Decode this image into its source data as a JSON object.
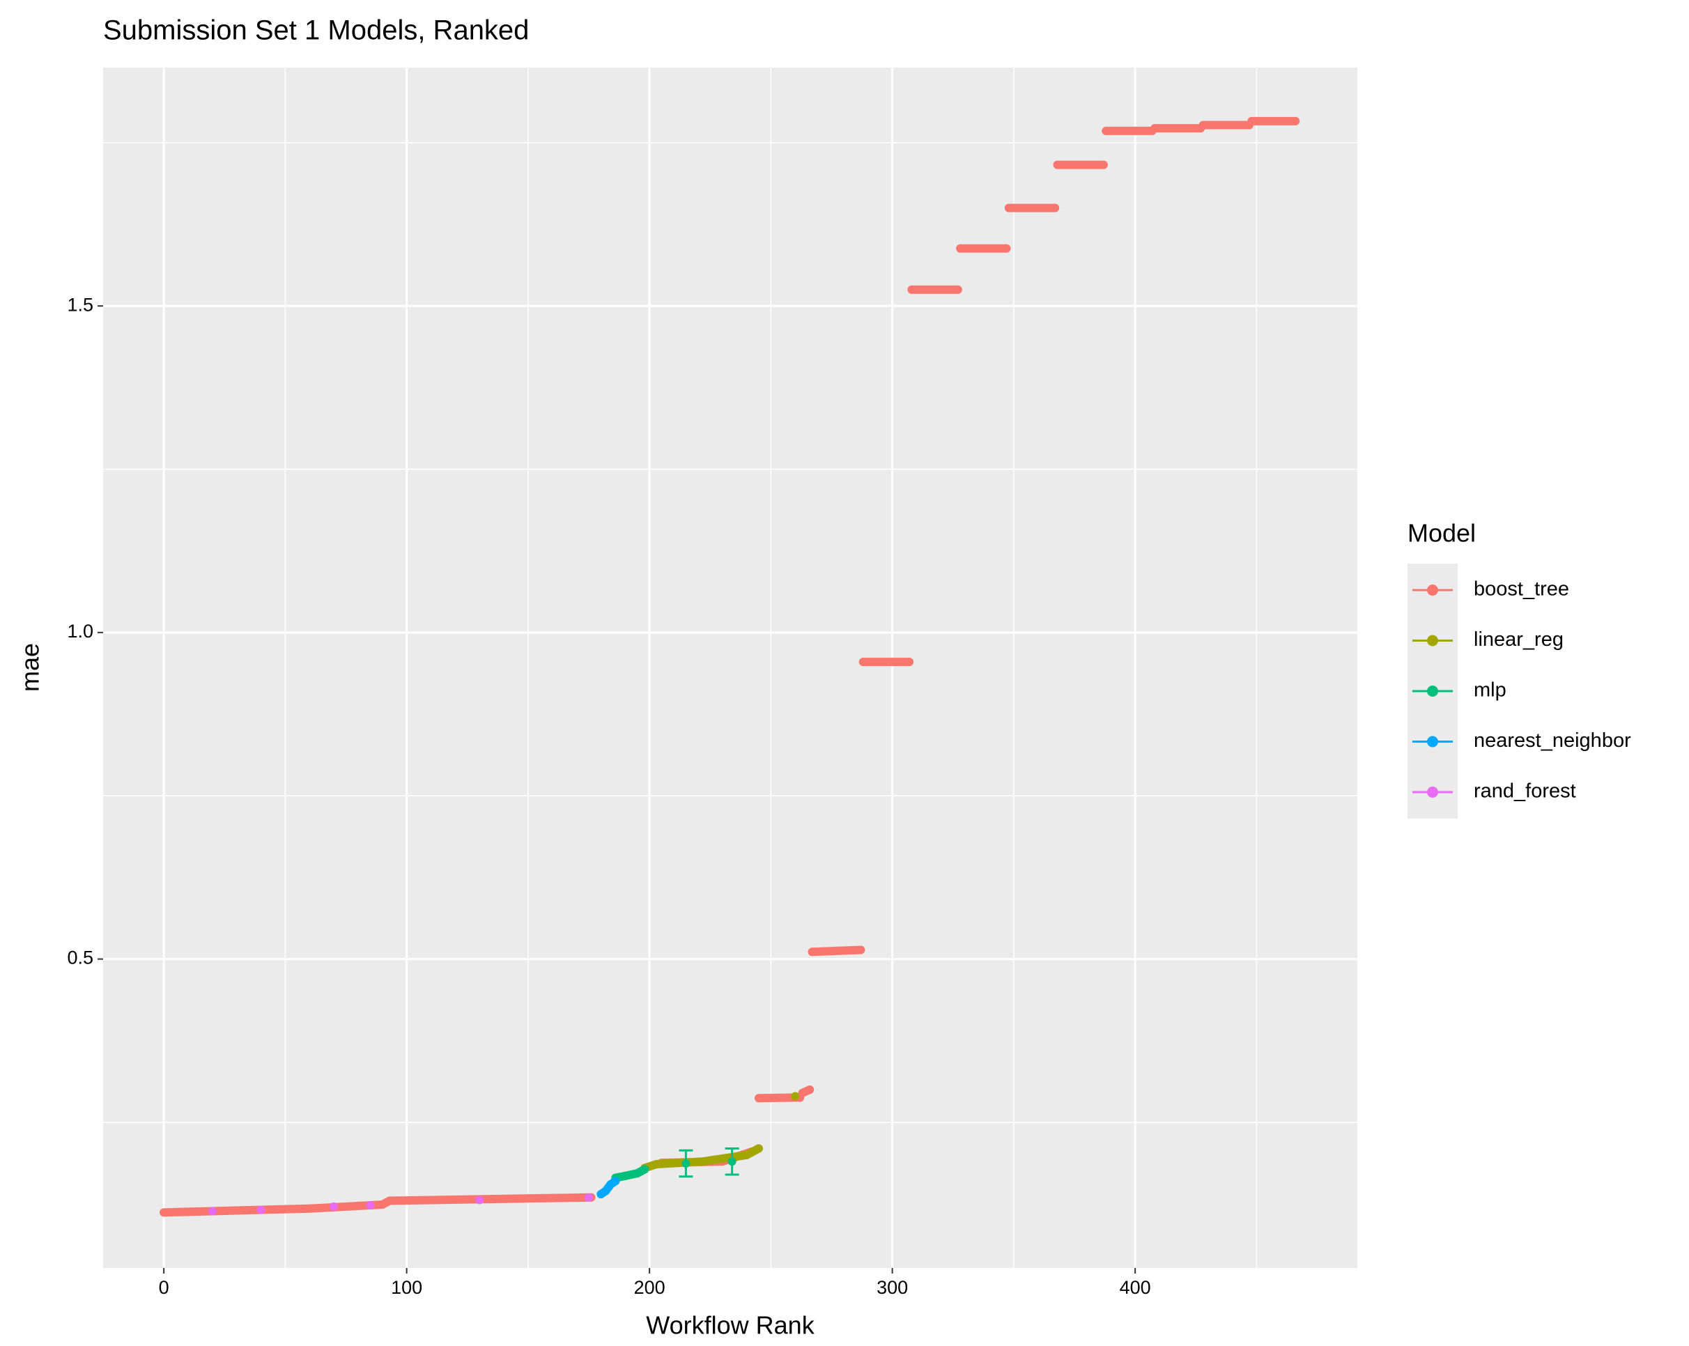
{
  "chart_data": {
    "type": "line",
    "title": "Submission Set 1 Models, Ranked",
    "x_label": "Workflow Rank",
    "y_label": "mae",
    "legend_title": "Model",
    "legend": "right",
    "grid": true,
    "xlim": [
      -25,
      491.5
    ],
    "ylim": [
      0.027,
      1.865
    ],
    "xticks": [
      0,
      100,
      200,
      300,
      400
    ],
    "yticks": [
      {
        "value": 0.5,
        "label": "0.5"
      },
      {
        "value": 1.0,
        "label": "1.0"
      },
      {
        "value": 1.5,
        "label": "1.5"
      }
    ],
    "xminor": [
      50,
      150,
      250,
      350,
      450
    ],
    "yminor": [
      0.25,
      0.75,
      1.25,
      1.75
    ],
    "series": [
      {
        "name": "boost_tree",
        "color": "#F8766D",
        "x": [
          0,
          60,
          90,
          93,
          176,
          177,
          205,
          230,
          242,
          244,
          245,
          262,
          262.5,
          263,
          266,
          266.5,
          267,
          287,
          287.5,
          288,
          307,
          307.5,
          308,
          327,
          327.5,
          328,
          347,
          347.5,
          348,
          367,
          367.5,
          368,
          387,
          387.5,
          388,
          407,
          407.5,
          408,
          427,
          427.5,
          428,
          447,
          447.5,
          448,
          466
        ],
        "values": [
          0.112,
          0.118,
          0.124,
          0.13,
          0.135,
          null,
          0.188,
          0.19,
          0.205,
          null,
          0.287,
          0.288,
          null,
          0.295,
          0.3,
          null,
          0.511,
          0.514,
          null,
          0.955,
          0.955,
          null,
          1.525,
          1.525,
          null,
          1.588,
          1.588,
          null,
          1.65,
          1.65,
          null,
          1.716,
          1.716,
          null,
          1.768,
          1.768,
          null,
          1.772,
          1.772,
          null,
          1.777,
          1.777,
          null,
          1.783,
          1.783
        ]
      },
      {
        "name": "linear_reg",
        "color": "#A3A500",
        "x": [
          198,
          203,
          212,
          222,
          240,
          245,
          252,
          260
        ],
        "values": [
          0.18,
          0.186,
          0.188,
          0.19,
          0.2,
          0.21,
          null,
          0.29
        ]
      },
      {
        "name": "mlp",
        "color": "#00BF7D",
        "x": [
          186,
          190,
          195,
          198,
          206,
          215,
          225,
          234
        ],
        "values": [
          0.165,
          0.168,
          0.172,
          0.178,
          null,
          0.187,
          null,
          0.19
        ],
        "errors": [
          null,
          null,
          null,
          null,
          null,
          0.02,
          null,
          0.02
        ]
      },
      {
        "name": "nearest_neighbor",
        "color": "#00A9FF",
        "x": [
          180,
          182,
          184,
          186
        ],
        "values": [
          0.14,
          0.145,
          0.155,
          0.16
        ]
      },
      {
        "name": "rand_forest",
        "color": "#E76BF3",
        "x": [
          20,
          30,
          40,
          55,
          70,
          80,
          85,
          100,
          130,
          160,
          175
        ],
        "values": [
          0.114,
          null,
          0.116,
          null,
          0.121,
          null,
          0.123,
          null,
          0.131,
          null,
          0.135
        ]
      }
    ]
  }
}
